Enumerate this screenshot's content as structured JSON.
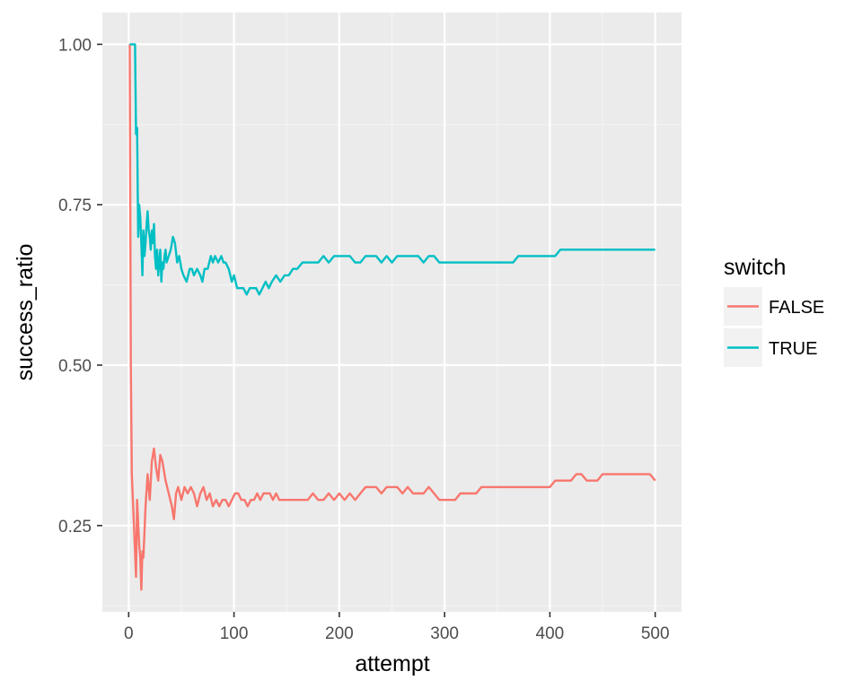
{
  "chart_data": {
    "type": "line",
    "xlabel": "attempt",
    "ylabel": "success_ratio",
    "xlim": [
      -25,
      525
    ],
    "ylim": [
      0.1155,
      1.0495
    ],
    "xticks": [
      0,
      100,
      200,
      300,
      400,
      500
    ],
    "xtick_labels": [
      "0",
      "100",
      "200",
      "300",
      "400",
      "500"
    ],
    "yticks": [
      0.25,
      0.5,
      0.75,
      1.0
    ],
    "ytick_labels": [
      "0.25",
      "0.50",
      "0.75",
      "1.00"
    ],
    "grid": true,
    "legend": {
      "title": "switch",
      "placement": "right"
    },
    "series": [
      {
        "name": "FALSE",
        "color": "#F8766D",
        "x": [
          1,
          2,
          3,
          5,
          7,
          8,
          10,
          11,
          12,
          13,
          14,
          16,
          18,
          20,
          22,
          24,
          26,
          28,
          30,
          32,
          35,
          38,
          41,
          43,
          45,
          47,
          50,
          53,
          56,
          59,
          62,
          65,
          68,
          71,
          74,
          77,
          80,
          83,
          86,
          89,
          92,
          95,
          98,
          101,
          104,
          107,
          110,
          113,
          116,
          119,
          122,
          125,
          128,
          131,
          134,
          137,
          140,
          143,
          146,
          150,
          155,
          160,
          165,
          170,
          175,
          180,
          185,
          190,
          195,
          200,
          205,
          210,
          215,
          220,
          225,
          230,
          235,
          240,
          245,
          250,
          255,
          260,
          265,
          270,
          275,
          280,
          285,
          290,
          295,
          300,
          305,
          310,
          315,
          320,
          325,
          330,
          335,
          340,
          345,
          350,
          355,
          360,
          365,
          370,
          375,
          380,
          385,
          390,
          395,
          400,
          405,
          410,
          415,
          420,
          425,
          430,
          435,
          440,
          445,
          450,
          455,
          460,
          465,
          470,
          475,
          480,
          485,
          490,
          495,
          500
        ],
        "values": [
          1.0,
          0.5,
          0.33,
          0.25,
          0.17,
          0.29,
          0.22,
          0.2,
          0.15,
          0.21,
          0.2,
          0.28,
          0.33,
          0.29,
          0.35,
          0.37,
          0.34,
          0.32,
          0.36,
          0.35,
          0.32,
          0.3,
          0.28,
          0.26,
          0.3,
          0.31,
          0.29,
          0.31,
          0.3,
          0.31,
          0.3,
          0.28,
          0.3,
          0.31,
          0.29,
          0.3,
          0.28,
          0.29,
          0.28,
          0.29,
          0.29,
          0.28,
          0.29,
          0.3,
          0.3,
          0.29,
          0.29,
          0.28,
          0.29,
          0.29,
          0.3,
          0.29,
          0.3,
          0.3,
          0.3,
          0.29,
          0.3,
          0.29,
          0.29,
          0.29,
          0.29,
          0.29,
          0.29,
          0.29,
          0.3,
          0.29,
          0.29,
          0.3,
          0.29,
          0.3,
          0.29,
          0.3,
          0.29,
          0.3,
          0.31,
          0.31,
          0.31,
          0.3,
          0.31,
          0.31,
          0.31,
          0.3,
          0.31,
          0.3,
          0.3,
          0.3,
          0.31,
          0.3,
          0.29,
          0.29,
          0.29,
          0.29,
          0.3,
          0.3,
          0.3,
          0.3,
          0.31,
          0.31,
          0.31,
          0.31,
          0.31,
          0.31,
          0.31,
          0.31,
          0.31,
          0.31,
          0.31,
          0.31,
          0.31,
          0.31,
          0.32,
          0.32,
          0.32,
          0.32,
          0.33,
          0.33,
          0.32,
          0.32,
          0.32,
          0.33,
          0.33,
          0.33,
          0.33,
          0.33,
          0.33,
          0.33,
          0.33,
          0.33,
          0.33,
          0.32
        ]
      },
      {
        "name": "TRUE",
        "color": "#00BFC4",
        "x": [
          1,
          2,
          3,
          4,
          5,
          6,
          7,
          8,
          9,
          10,
          11,
          12,
          13,
          14,
          15,
          16,
          17,
          18,
          19,
          20,
          21,
          22,
          23,
          24,
          25,
          26,
          27,
          28,
          29,
          30,
          31,
          32,
          33,
          34,
          35,
          36,
          38,
          40,
          42,
          44,
          46,
          48,
          50,
          52,
          55,
          58,
          60,
          62,
          65,
          68,
          70,
          72,
          75,
          78,
          80,
          82,
          85,
          88,
          90,
          92,
          95,
          98,
          100,
          103,
          106,
          109,
          112,
          115,
          118,
          121,
          124,
          127,
          130,
          133,
          136,
          140,
          144,
          148,
          152,
          156,
          160,
          165,
          170,
          175,
          180,
          185,
          190,
          195,
          200,
          205,
          210,
          215,
          220,
          225,
          230,
          235,
          240,
          245,
          250,
          255,
          260,
          265,
          270,
          275,
          280,
          285,
          290,
          295,
          300,
          305,
          310,
          315,
          320,
          325,
          330,
          335,
          340,
          345,
          350,
          355,
          360,
          365,
          370,
          375,
          380,
          385,
          390,
          395,
          400,
          405,
          410,
          415,
          420,
          425,
          430,
          435,
          440,
          445,
          450,
          455,
          460,
          465,
          470,
          475,
          480,
          485,
          490,
          495,
          500
        ],
        "values": [
          1.0,
          1.0,
          1.0,
          1.0,
          1.0,
          1.0,
          0.86,
          0.87,
          0.7,
          0.75,
          0.73,
          0.69,
          0.64,
          0.71,
          0.67,
          0.69,
          0.72,
          0.74,
          0.71,
          0.7,
          0.68,
          0.71,
          0.69,
          0.72,
          0.67,
          0.65,
          0.68,
          0.64,
          0.66,
          0.68,
          0.63,
          0.66,
          0.65,
          0.67,
          0.68,
          0.66,
          0.67,
          0.68,
          0.7,
          0.69,
          0.66,
          0.67,
          0.65,
          0.64,
          0.63,
          0.65,
          0.65,
          0.64,
          0.65,
          0.64,
          0.63,
          0.65,
          0.65,
          0.67,
          0.66,
          0.67,
          0.66,
          0.67,
          0.66,
          0.66,
          0.65,
          0.63,
          0.64,
          0.62,
          0.62,
          0.62,
          0.61,
          0.62,
          0.62,
          0.62,
          0.61,
          0.62,
          0.63,
          0.62,
          0.63,
          0.64,
          0.63,
          0.64,
          0.64,
          0.65,
          0.65,
          0.66,
          0.66,
          0.66,
          0.66,
          0.67,
          0.66,
          0.67,
          0.67,
          0.67,
          0.67,
          0.66,
          0.66,
          0.67,
          0.67,
          0.67,
          0.66,
          0.67,
          0.66,
          0.67,
          0.67,
          0.67,
          0.67,
          0.67,
          0.66,
          0.67,
          0.67,
          0.66,
          0.66,
          0.66,
          0.66,
          0.66,
          0.66,
          0.66,
          0.66,
          0.66,
          0.66,
          0.66,
          0.66,
          0.66,
          0.66,
          0.66,
          0.67,
          0.67,
          0.67,
          0.67,
          0.67,
          0.67,
          0.67,
          0.67,
          0.68,
          0.68,
          0.68,
          0.68,
          0.68,
          0.68,
          0.68,
          0.68,
          0.68,
          0.68,
          0.68,
          0.68,
          0.68,
          0.68,
          0.68,
          0.68,
          0.68,
          0.68,
          0.68
        ]
      }
    ]
  }
}
